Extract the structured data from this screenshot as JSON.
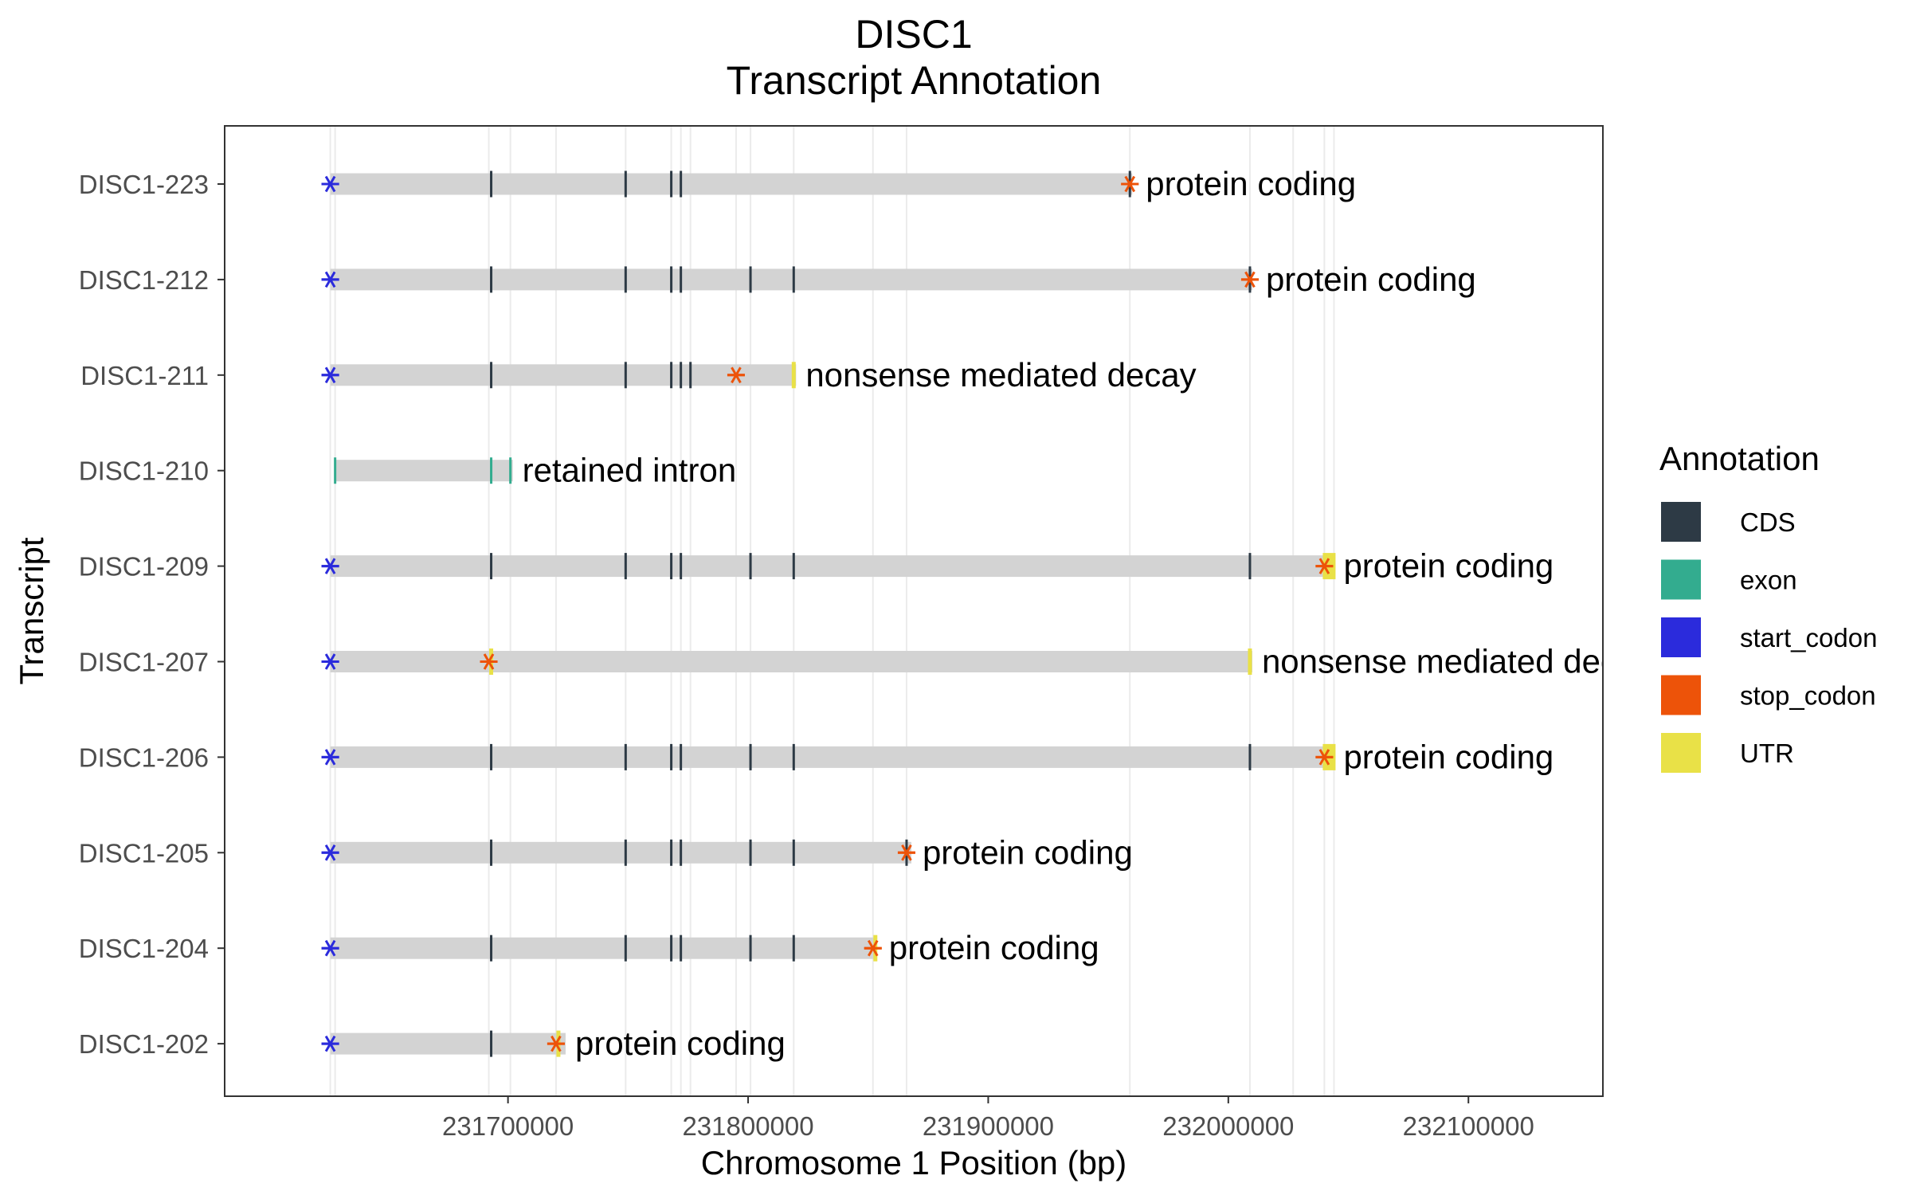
{
  "chart_data": {
    "type": "gene-track",
    "title": "DISC1",
    "subtitle": "Transcript Annotation",
    "xlabel": "Chromosome 1 Position (bp)",
    "ylabel": "Transcript",
    "xlim": [
      231582000,
      232156000
    ],
    "x_ticks": [
      231700000,
      231800000,
      231900000,
      232000000,
      232100000
    ],
    "x_tick_labels": [
      "231700000",
      "231800000",
      "231900000",
      "232000000",
      "232100000"
    ],
    "grid": true,
    "legend_placement": "right",
    "legend": {
      "title": "Annotation",
      "items": [
        {
          "key": "CDS",
          "label": "CDS",
          "color": "#2d3a45"
        },
        {
          "key": "exon",
          "label": "exon",
          "color": "#33ac8f"
        },
        {
          "key": "start_codon",
          "label": "start_codon",
          "color": "#2b2bdc"
        },
        {
          "key": "stop_codon",
          "label": "stop_codon",
          "color": "#ed5309"
        },
        {
          "key": "UTR",
          "label": "UTR",
          "color": "#e9e147"
        }
      ]
    },
    "line_color": "#d3d3d3",
    "exon_positions": [
      231626000,
      231628000,
      231692000,
      231701000,
      231720000,
      231749000,
      231768000,
      231772000,
      231776000,
      231795000,
      231801000,
      231819000,
      231852000,
      231866000,
      231959000,
      232009000,
      232027000,
      232040000,
      232044000
    ],
    "transcripts": [
      {
        "name": "DISC1-223",
        "biotype": "protein coding",
        "start": 231626000,
        "end": 231960000,
        "cds": [
          231693000,
          231749000,
          231768000,
          231772000,
          231959000
        ],
        "exons": [],
        "utr": [],
        "start_codon": 231626000,
        "stop_codon": 231959000
      },
      {
        "name": "DISC1-212",
        "biotype": "protein coding",
        "start": 231626000,
        "end": 232010000,
        "cds": [
          231693000,
          231749000,
          231768000,
          231772000,
          231801000,
          231819000,
          232009000
        ],
        "exons": [],
        "utr": [],
        "start_codon": 231626000,
        "stop_codon": 232009000
      },
      {
        "name": "DISC1-211",
        "biotype": "nonsense mediated decay",
        "start": 231626000,
        "end": 231820000,
        "cds": [
          231693000,
          231749000,
          231768000,
          231772000,
          231776000
        ],
        "exons": [],
        "utr": [
          231819000
        ],
        "start_codon": 231626000,
        "stop_codon": 231795000
      },
      {
        "name": "DISC1-210",
        "biotype": "retained intron",
        "start": 231628000,
        "end": 231702000,
        "cds": [],
        "exons": [
          231628000,
          231693000,
          231701000
        ],
        "utr": [],
        "start_codon": null,
        "stop_codon": null
      },
      {
        "name": "DISC1-209",
        "biotype": "protein coding",
        "start": 231626000,
        "end": 232044000,
        "cds": [
          231693000,
          231749000,
          231768000,
          231772000,
          231801000,
          231819000,
          232009000
        ],
        "exons": [],
        "utr": [
          232042000
        ],
        "start_codon": 231626000,
        "stop_codon": 232040000
      },
      {
        "name": "DISC1-207",
        "biotype": "nonsense mediated decay",
        "start": 231626000,
        "end": 232010000,
        "cds": [],
        "exons": [],
        "utr": [
          231693000,
          232009000
        ],
        "start_codon": 231626000,
        "stop_codon": 231692000
      },
      {
        "name": "DISC1-206",
        "biotype": "protein coding",
        "start": 231626000,
        "end": 232044000,
        "cds": [
          231693000,
          231749000,
          231768000,
          231772000,
          231801000,
          231819000,
          232009000
        ],
        "exons": [],
        "utr": [
          232042000
        ],
        "start_codon": 231626000,
        "stop_codon": 232040000
      },
      {
        "name": "DISC1-205",
        "biotype": "protein coding",
        "start": 231626000,
        "end": 231868000,
        "cds": [
          231693000,
          231749000,
          231768000,
          231772000,
          231801000,
          231819000,
          231866000
        ],
        "exons": [],
        "utr": [],
        "start_codon": 231626000,
        "stop_codon": 231866000
      },
      {
        "name": "DISC1-204",
        "biotype": "protein coding",
        "start": 231626000,
        "end": 231853000,
        "cds": [
          231693000,
          231749000,
          231768000,
          231772000,
          231801000,
          231819000
        ],
        "exons": [],
        "utr": [
          231853000
        ],
        "start_codon": 231626000,
        "stop_codon": 231852000
      },
      {
        "name": "DISC1-202",
        "biotype": "protein coding",
        "start": 231626000,
        "end": 231724000,
        "cds": [
          231693000
        ],
        "exons": [],
        "utr": [
          231721000
        ],
        "start_codon": 231626000,
        "stop_codon": 231720000
      }
    ]
  }
}
